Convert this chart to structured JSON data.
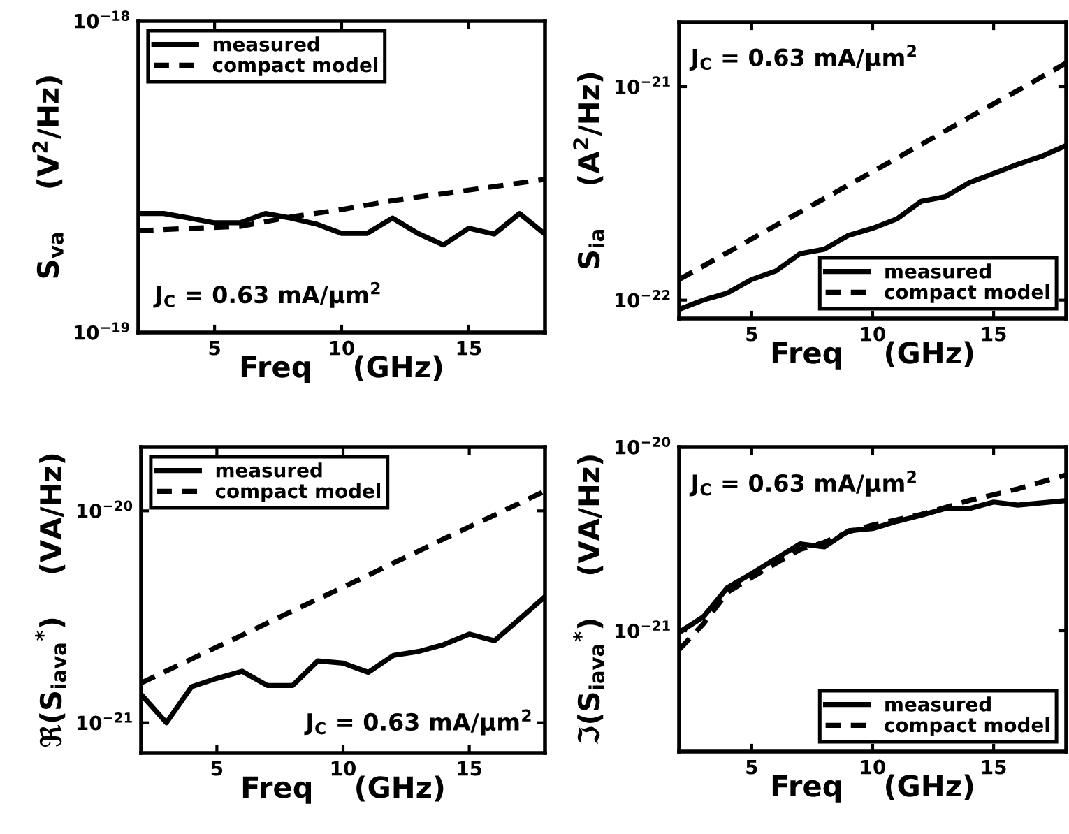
{
  "chart_data": [
    {
      "type": "line",
      "xlabel": "Freq    (GHz)",
      "ylabel": "S$_{va}$    (V$^{2}$/Hz)",
      "log": "y",
      "xlim": [
        2,
        18
      ],
      "xticks": [
        5,
        10,
        15
      ],
      "ylim": [
        1e-19,
        1e-18
      ],
      "yticks": [
        {
          "value": 1e-19,
          "label": "10$^{−19}$"
        },
        {
          "value": 1e-18,
          "label": "10$^{−18}$"
        }
      ],
      "legend": "top left",
      "grid": false,
      "annotations": [
        "J$_{C}$ = 0.63 mA/μm$^{2}$"
      ],
      "series": [
        {
          "name": "measured",
          "color": "#000000",
          "line_style": "solid",
          "x": [
            2,
            3,
            4,
            5,
            6,
            7,
            8,
            9,
            10,
            11,
            12,
            13,
            14,
            15,
            16,
            17,
            18
          ],
          "values": [
            2.41e-19,
            2.41e-19,
            2.33e-19,
            2.25e-19,
            2.25e-19,
            2.41e-19,
            2.33e-19,
            2.23e-19,
            2.08e-19,
            2.08e-19,
            2.33e-19,
            2.08e-19,
            1.91e-19,
            2.16e-19,
            2.07e-19,
            2.41e-19,
            2.07e-19
          ]
        },
        {
          "name": "compact model",
          "color": "#000000",
          "line_style": "dashed",
          "x": [
            2,
            4,
            6,
            8,
            10,
            12,
            14,
            16,
            18
          ],
          "values": [
            2.12e-19,
            2.16e-19,
            2.19e-19,
            2.35e-19,
            2.48e-19,
            2.65e-19,
            2.79e-19,
            2.94e-19,
            3.1e-19
          ]
        }
      ]
    },
    {
      "type": "line",
      "xlabel": "Freq    (GHz)",
      "ylabel": "S$_{ia}$    (A$^{2}$/Hz)",
      "log": "y",
      "xlim": [
        2,
        18
      ],
      "xticks": [
        5,
        10,
        15
      ],
      "ylim": [
        8.2e-23,
        2e-21
      ],
      "yticks": [
        {
          "value": 1e-22,
          "label": "10$^{−22}$"
        },
        {
          "value": 1e-21,
          "label": "10$^{−21}$"
        }
      ],
      "legend": "bottom right",
      "grid": false,
      "annotations": [
        "J$_{C}$ = 0.63 mA/μm$^{2}$"
      ],
      "series": [
        {
          "name": "measured",
          "color": "#000000",
          "line_style": "solid",
          "x": [
            2,
            3,
            4,
            5,
            6,
            7,
            8,
            9,
            10,
            11,
            12,
            13,
            14,
            15,
            16,
            17,
            18
          ],
          "values": [
            9.05e-23,
            1e-22,
            1.08e-22,
            1.25e-22,
            1.37e-22,
            1.65e-22,
            1.73e-22,
            2.01e-22,
            2.17e-22,
            2.4e-22,
            2.9e-22,
            3.05e-22,
            3.55e-22,
            3.92e-22,
            4.33e-22,
            4.72e-22,
            5.3e-22
          ]
        },
        {
          "name": "compact model",
          "color": "#000000",
          "line_style": "dashed",
          "x": [
            2,
            4,
            6,
            8,
            10,
            12,
            14,
            16,
            18
          ],
          "values": [
            1.25e-22,
            1.67e-22,
            2.24e-22,
            2.99e-22,
            4e-22,
            5.35e-22,
            7.19e-22,
            9.6e-22,
            1.29e-21
          ]
        }
      ]
    },
    {
      "type": "line",
      "xlabel": "Freq    (GHz)",
      "ylabel": "ℜ(S$_{iava}$$^{*}$)    (VA/Hz)",
      "log": "y",
      "xlim": [
        2,
        18
      ],
      "xticks": [
        5,
        10,
        15
      ],
      "ylim": [
        7.2e-22,
        2e-20
      ],
      "yticks": [
        {
          "value": 1e-21,
          "label": "10$^{−21}$"
        },
        {
          "value": 1e-20,
          "label": "10$^{−20}$"
        }
      ],
      "legend": "top left",
      "grid": false,
      "annotations": [
        "J$_{C}$ = 0.63 mA/μm$^{2}$"
      ],
      "series": [
        {
          "name": "measured",
          "color": "#000000",
          "line_style": "solid",
          "x": [
            2,
            3,
            4,
            5,
            6,
            7,
            8,
            9,
            10,
            11,
            12,
            13,
            14,
            15,
            16,
            17,
            18
          ],
          "values": [
            1.36e-21,
            1e-21,
            1.48e-21,
            1.62e-21,
            1.75e-21,
            1.5e-21,
            1.5e-21,
            1.96e-21,
            1.91e-21,
            1.73e-21,
            2.08e-21,
            2.17e-21,
            2.34e-21,
            2.62e-21,
            2.44e-21,
            3.09e-21,
            3.94e-21
          ]
        },
        {
          "name": "compact model",
          "color": "#000000",
          "line_style": "dashed",
          "x": [
            2,
            4,
            6,
            8,
            10,
            12,
            14,
            16,
            18
          ],
          "values": [
            1.54e-21,
            2e-21,
            2.59e-21,
            3.37e-21,
            4.36e-21,
            5.67e-21,
            7.38e-21,
            9.55e-21,
            1.24e-20
          ]
        }
      ]
    },
    {
      "type": "line",
      "xlabel": "Freq    (GHz)",
      "ylabel": "ℑ(S$_{iava}$$^{*}$)    (VA/Hz)",
      "log": "y",
      "xlim": [
        2,
        18
      ],
      "xticks": [
        5,
        10,
        15
      ],
      "ylim": [
        2.2e-22,
        1e-20
      ],
      "yticks": [
        {
          "value": 1e-21,
          "label": "10$^{−21}$"
        },
        {
          "value": 1e-20,
          "label": "10$^{−20}$"
        }
      ],
      "legend": "bottom right",
      "grid": false,
      "annotations": [
        "J$_{C}$ = 0.63 mA/μm$^{2}$"
      ],
      "series": [
        {
          "name": "measured",
          "color": "#000000",
          "line_style": "solid",
          "x": [
            2,
            3,
            4,
            5,
            6,
            7,
            8,
            9,
            10,
            11,
            12,
            13,
            14,
            15,
            16,
            17,
            18
          ],
          "values": [
            9.8e-22,
            1.19e-21,
            1.72e-21,
            2.05e-21,
            2.47e-21,
            2.97e-21,
            2.86e-21,
            3.5e-21,
            3.6e-21,
            3.94e-21,
            4.25e-21,
            4.63e-21,
            4.63e-21,
            5.02e-21,
            4.83e-21,
            4.97e-21,
            5.11e-21
          ]
        },
        {
          "name": "compact model",
          "color": "#000000",
          "line_style": "dashed",
          "x": [
            2,
            3,
            4,
            5,
            6,
            7,
            8,
            9,
            10,
            12,
            14,
            16,
            18
          ],
          "values": [
            7.9e-22,
            1.09e-21,
            1.62e-21,
            1.95e-21,
            2.33e-21,
            2.77e-21,
            3.03e-21,
            3.46e-21,
            3.76e-21,
            4.3e-21,
            5.12e-21,
            5.92e-21,
            7.05e-21
          ]
        }
      ]
    }
  ]
}
